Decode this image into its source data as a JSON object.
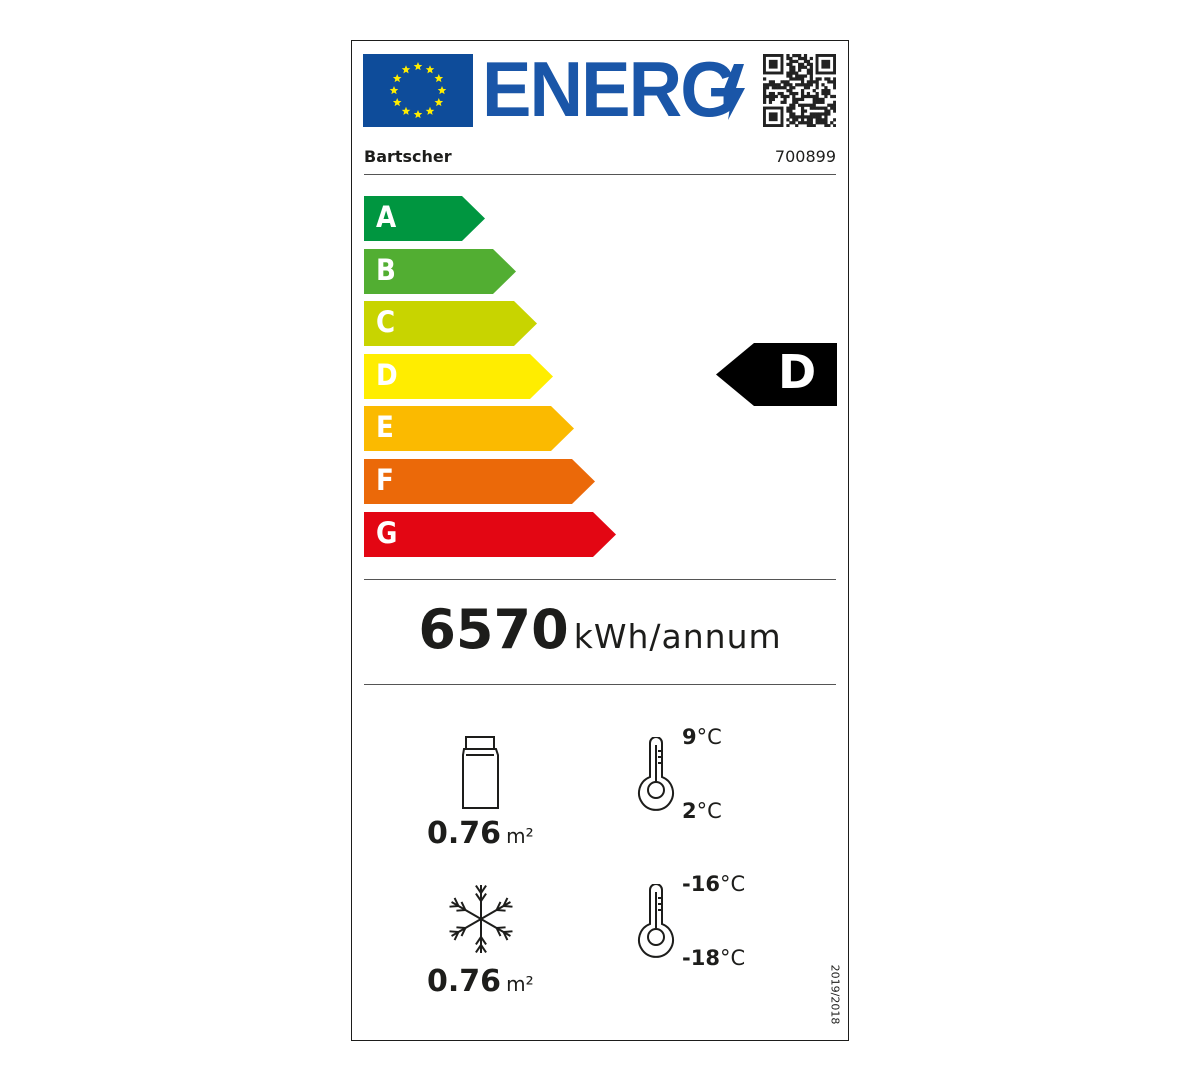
{
  "header": {
    "logo_text": "ENERG",
    "supplier": "Bartscher",
    "model": "700899"
  },
  "scale": [
    {
      "letter": "A",
      "color": "#009640"
    },
    {
      "letter": "B",
      "color": "#52ae32"
    },
    {
      "letter": "C",
      "color": "#c8d400"
    },
    {
      "letter": "D",
      "color": "#ffed00"
    },
    {
      "letter": "E",
      "color": "#fbba00"
    },
    {
      "letter": "F",
      "color": "#eb6909"
    },
    {
      "letter": "G",
      "color": "#e30613"
    }
  ],
  "rating": {
    "class": "D"
  },
  "energy": {
    "value": "6570",
    "unit": "kWh/annum"
  },
  "chilled": {
    "area": "0.76",
    "unit": "m²",
    "temp_max": "9",
    "temp_min": "2",
    "temp_unit": "°C"
  },
  "frozen": {
    "area": "0.76",
    "unit": "m²",
    "temp_max": "-16",
    "temp_min": "-18",
    "temp_unit": "°C"
  },
  "regulation": "2019/2018",
  "colors": {
    "eu_blue": "#0e4c9a",
    "star": "#ffed00",
    "logo_blue": "#1a56a8"
  }
}
